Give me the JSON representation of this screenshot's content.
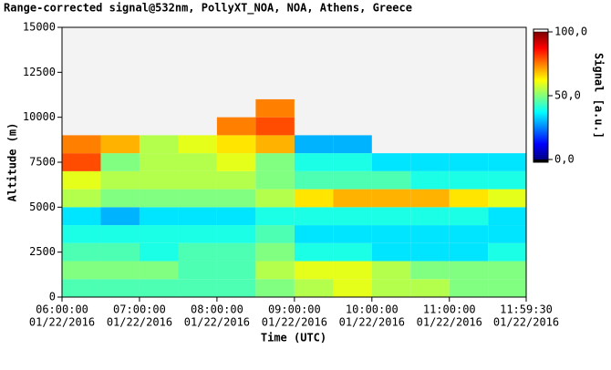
{
  "chart_data": {
    "type": "heatmap",
    "title": "Range-corrected signal@532nm, PollyXT_NOA, NOA, Athens, Greece",
    "x_label": "Time (UTC)",
    "y_label": "Altitude (m)",
    "colorbar_label": "Signal [a.u.]",
    "x": [
      6.25,
      6.75,
      7.25,
      7.75,
      8.25,
      8.75,
      9.25,
      9.75,
      10.25,
      10.75,
      11.25,
      11.75
    ],
    "y": [
      500,
      1500,
      2500,
      3500,
      4500,
      5500,
      6500,
      7500,
      8500,
      9500,
      10500,
      11500,
      12500,
      13500,
      14500
    ],
    "z": [
      [
        45,
        45,
        45,
        45,
        45,
        50,
        55,
        60,
        55,
        55,
        50,
        50
      ],
      [
        50,
        50,
        50,
        45,
        45,
        55,
        60,
        60,
        55,
        50,
        50,
        50
      ],
      [
        45,
        45,
        40,
        45,
        45,
        50,
        40,
        40,
        35,
        35,
        35,
        40
      ],
      [
        40,
        40,
        40,
        40,
        40,
        45,
        35,
        35,
        35,
        35,
        35,
        35
      ],
      [
        35,
        30,
        35,
        35,
        35,
        40,
        40,
        40,
        40,
        40,
        40,
        35
      ],
      [
        55,
        50,
        50,
        50,
        50,
        55,
        65,
        70,
        70,
        70,
        65,
        60
      ],
      [
        60,
        55,
        55,
        55,
        55,
        50,
        45,
        45,
        45,
        40,
        40,
        40
      ],
      [
        80,
        50,
        55,
        55,
        60,
        50,
        40,
        40,
        35,
        35,
        35,
        35
      ],
      [
        75,
        70,
        55,
        60,
        65,
        70,
        30,
        30,
        null,
        null,
        null,
        null
      ],
      [
        null,
        null,
        null,
        null,
        75,
        80,
        null,
        null,
        null,
        null,
        null,
        null
      ],
      [
        null,
        null,
        null,
        null,
        null,
        75,
        null,
        null,
        null,
        null,
        null,
        null
      ],
      [
        null,
        null,
        null,
        null,
        null,
        null,
        null,
        null,
        null,
        null,
        null,
        null
      ],
      [
        null,
        null,
        null,
        null,
        null,
        null,
        null,
        null,
        null,
        null,
        null,
        null
      ],
      [
        null,
        null,
        null,
        null,
        null,
        null,
        null,
        null,
        null,
        null,
        null,
        null
      ],
      [
        null,
        null,
        null,
        null,
        null,
        null,
        null,
        null,
        null,
        null,
        null,
        null
      ]
    ],
    "xlim": [
      6,
      11.991667
    ],
    "xticks": [
      {
        "value": 6,
        "label": "06:00:00",
        "date": "01/22/2016"
      },
      {
        "value": 7,
        "label": "07:00:00",
        "date": "01/22/2016"
      },
      {
        "value": 8,
        "label": "08:00:00",
        "date": "01/22/2016"
      },
      {
        "value": 9,
        "label": "09:00:00",
        "date": "01/22/2016"
      },
      {
        "value": 10,
        "label": "10:00:00",
        "date": "01/22/2016"
      },
      {
        "value": 11,
        "label": "11:00:00",
        "date": "01/22/2016"
      },
      {
        "value": 11.991667,
        "label": "11:59:30",
        "date": "01/22/2016"
      }
    ],
    "ylim": [
      0,
      15000
    ],
    "yticks": [
      0,
      2500,
      5000,
      7500,
      10000,
      12500,
      15000
    ],
    "clim": [
      0,
      100
    ],
    "cticks": [
      {
        "value": 0,
        "label": "0,0"
      },
      {
        "value": 50,
        "label": "50,0"
      },
      {
        "value": 100,
        "label": "100,0"
      }
    ],
    "colormap": "jet"
  }
}
